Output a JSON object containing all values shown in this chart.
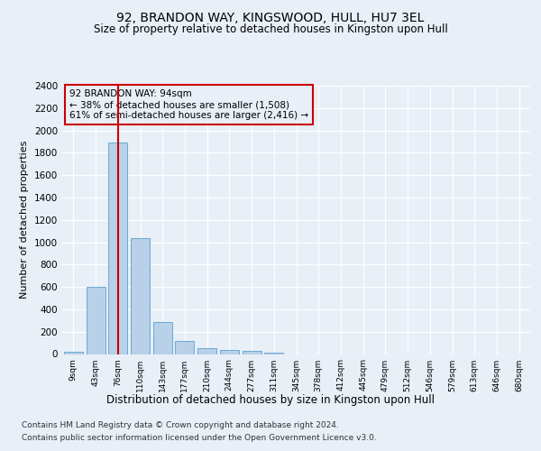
{
  "title1": "92, BRANDON WAY, KINGSWOOD, HULL, HU7 3EL",
  "title2": "Size of property relative to detached houses in Kingston upon Hull",
  "xlabel": "Distribution of detached houses by size in Kingston upon Hull",
  "ylabel": "Number of detached properties",
  "categories": [
    "9sqm",
    "43sqm",
    "76sqm",
    "110sqm",
    "143sqm",
    "177sqm",
    "210sqm",
    "244sqm",
    "277sqm",
    "311sqm",
    "345sqm",
    "378sqm",
    "412sqm",
    "445sqm",
    "479sqm",
    "512sqm",
    "546sqm",
    "579sqm",
    "613sqm",
    "646sqm",
    "680sqm"
  ],
  "values": [
    20,
    600,
    1890,
    1035,
    290,
    120,
    50,
    35,
    25,
    15,
    0,
    0,
    0,
    0,
    0,
    0,
    0,
    0,
    0,
    0,
    0
  ],
  "bar_color": "#b8d0e8",
  "bar_edge_color": "#6aaad4",
  "vline_x": 2,
  "vline_color": "#cc0000",
  "annotation_title": "92 BRANDON WAY: 94sqm",
  "annotation_line1": "← 38% of detached houses are smaller (1,508)",
  "annotation_line2": "61% of semi-detached houses are larger (2,416) →",
  "ylim_max": 2400,
  "yticks": [
    0,
    200,
    400,
    600,
    800,
    1000,
    1200,
    1400,
    1600,
    1800,
    2000,
    2200,
    2400
  ],
  "bg_color": "#e8eff7",
  "grid_color": "#ffffff",
  "footer1": "Contains HM Land Registry data © Crown copyright and database right 2024.",
  "footer2": "Contains public sector information licensed under the Open Government Licence v3.0."
}
